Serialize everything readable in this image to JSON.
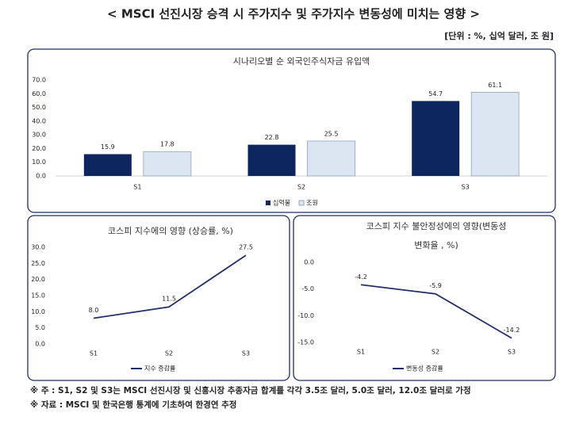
{
  "header": {
    "title": "< MSCI 선진시장 승격 시 주가지수 및 주가지수 변동성에 미치는 영향 >",
    "unit": "[단위 : %, 십억 달러, 조 원]"
  },
  "notes": [
    "※ 주 : S1, S2 및 S3는 MSCI 선진시장 및 신흥시장 추종자금 합계를 각각 3.5조 달러, 5.0조 달러, 12.0조 달러로 가정",
    "※ 자료 : MSCI 및 한국은행 통계에 기초하여 한경연 추정"
  ],
  "chart_data": [
    {
      "type": "bar",
      "title": "시나리오별 순 외국인주식자금 유입액",
      "categories": [
        "S1",
        "S2",
        "S3"
      ],
      "series": [
        {
          "name": "십억불",
          "color": "#0d2660",
          "values": [
            15.9,
            22.8,
            54.7
          ]
        },
        {
          "name": "조원",
          "color": "#dce6f2",
          "values": [
            17.8,
            25.5,
            61.1
          ]
        }
      ],
      "ylim": [
        0,
        70
      ],
      "yticks": [
        {
          "value": 0,
          "label": "0.0"
        },
        {
          "value": 10,
          "label": "10.0"
        },
        {
          "value": 20,
          "label": "20.0"
        },
        {
          "value": 30,
          "label": "30.0"
        },
        {
          "value": 40,
          "label": "40.0"
        },
        {
          "value": 50,
          "label": "50.0"
        },
        {
          "value": 60,
          "label": "60.0"
        },
        {
          "value": 70,
          "label": "70.0"
        }
      ],
      "legend": "bottom"
    },
    {
      "type": "line",
      "title": [
        "코스피 지수에의 영향 (상승률, %)"
      ],
      "categories": [
        "S1",
        "S2",
        "S3"
      ],
      "series": [
        {
          "name": "지수 증감률",
          "color": "#1f2f6b",
          "values": [
            8.0,
            11.5,
            27.5
          ],
          "value_labels": [
            "8.0",
            "11.5",
            "27.5"
          ]
        }
      ],
      "ylim": [
        0,
        30
      ],
      "yticks": [
        {
          "value": 0,
          "label": "0.0"
        },
        {
          "value": 5,
          "label": "5.0"
        },
        {
          "value": 10,
          "label": "10.0"
        },
        {
          "value": 15,
          "label": "15.0"
        },
        {
          "value": 20,
          "label": "20.0"
        },
        {
          "value": 25,
          "label": "25.0"
        },
        {
          "value": 30,
          "label": "30.0"
        }
      ],
      "legend": "bottom"
    },
    {
      "type": "line",
      "title": [
        "코스피 지수 불안정성에의 영향(변동성",
        "변화율 , %)"
      ],
      "categories": [
        "S1",
        "S2",
        "S3"
      ],
      "series": [
        {
          "name": "변동성 증감률",
          "color": "#1f2f6b",
          "values": [
            -4.2,
            -5.9,
            -14.2
          ]
        }
      ],
      "ylim": [
        -15,
        0
      ],
      "yticks": [
        {
          "value": 0,
          "label": "0.0"
        },
        {
          "value": -5,
          "label": "-5.0"
        },
        {
          "value": -10,
          "label": "-10.0"
        },
        {
          "value": -15,
          "label": "-15.0"
        }
      ],
      "legend": "bottom"
    }
  ]
}
